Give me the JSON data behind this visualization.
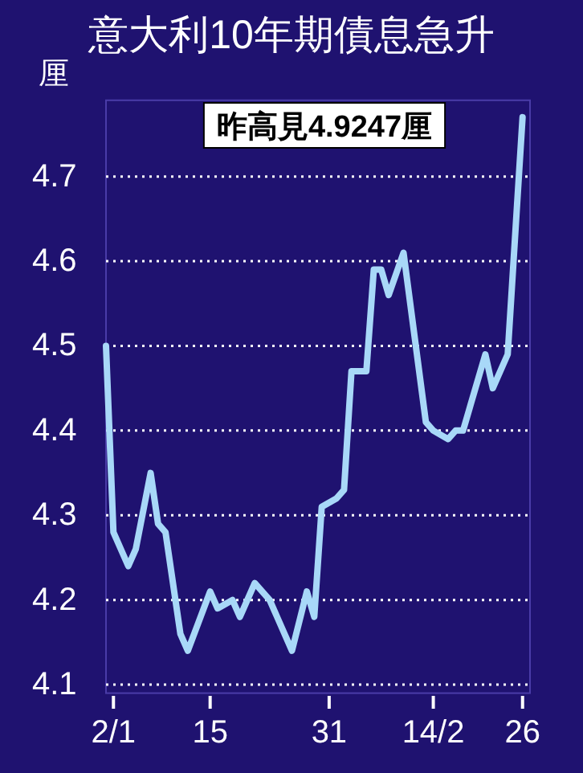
{
  "chart_data": {
    "type": "line",
    "title": "意大利10年期債息急升",
    "ylabel": "厘",
    "annotations": [
      "昨高見4.9247厘"
    ],
    "x": [
      "--01-01",
      "--01-02",
      "--01-04",
      "--01-05",
      "--01-07",
      "--01-08",
      "--01-09",
      "--01-11",
      "--01-12",
      "--01-15",
      "--01-16",
      "--01-18",
      "--01-19",
      "--01-21",
      "--01-23",
      "--01-24",
      "--01-26",
      "--01-28",
      "--01-29",
      "--01-30",
      "--02-01",
      "--02-02",
      "--02-03",
      "--02-05",
      "--02-06",
      "--02-07",
      "--02-08",
      "--02-10",
      "--02-13",
      "--02-14",
      "--02-16",
      "--02-17",
      "--02-18",
      "--02-19",
      "--02-21",
      "--02-22",
      "--02-24",
      "--02-26"
    ],
    "series": [
      {
        "color": "#a8d8f8",
        "values": [
          4.5,
          4.28,
          4.24,
          4.26,
          4.35,
          4.29,
          4.28,
          4.16,
          4.14,
          4.21,
          4.19,
          4.2,
          4.18,
          4.22,
          4.2,
          4.18,
          4.14,
          4.21,
          4.18,
          4.31,
          4.32,
          4.33,
          4.47,
          4.47,
          4.59,
          4.59,
          4.56,
          4.61,
          4.41,
          4.4,
          4.39,
          4.4,
          4.4,
          4.43,
          4.49,
          4.45,
          4.49,
          4.77
        ]
      }
    ],
    "xlim": [
      "--01-01",
      "--02-27"
    ],
    "ylim": [
      4.09,
      4.79
    ],
    "yticks": [
      4.1,
      4.2,
      4.3,
      4.4,
      4.5,
      4.6,
      4.7
    ],
    "xticks": [
      {
        "value": "--01-02",
        "label": "2/1"
      },
      {
        "value": "--01-15",
        "label": "15"
      },
      {
        "value": "--01-31",
        "label": "31"
      },
      {
        "value": "--02-14",
        "label": "14/2"
      },
      {
        "value": "--02-26",
        "label": "26"
      }
    ],
    "grid": "y",
    "marker": "none",
    "line_style": "solid"
  }
}
